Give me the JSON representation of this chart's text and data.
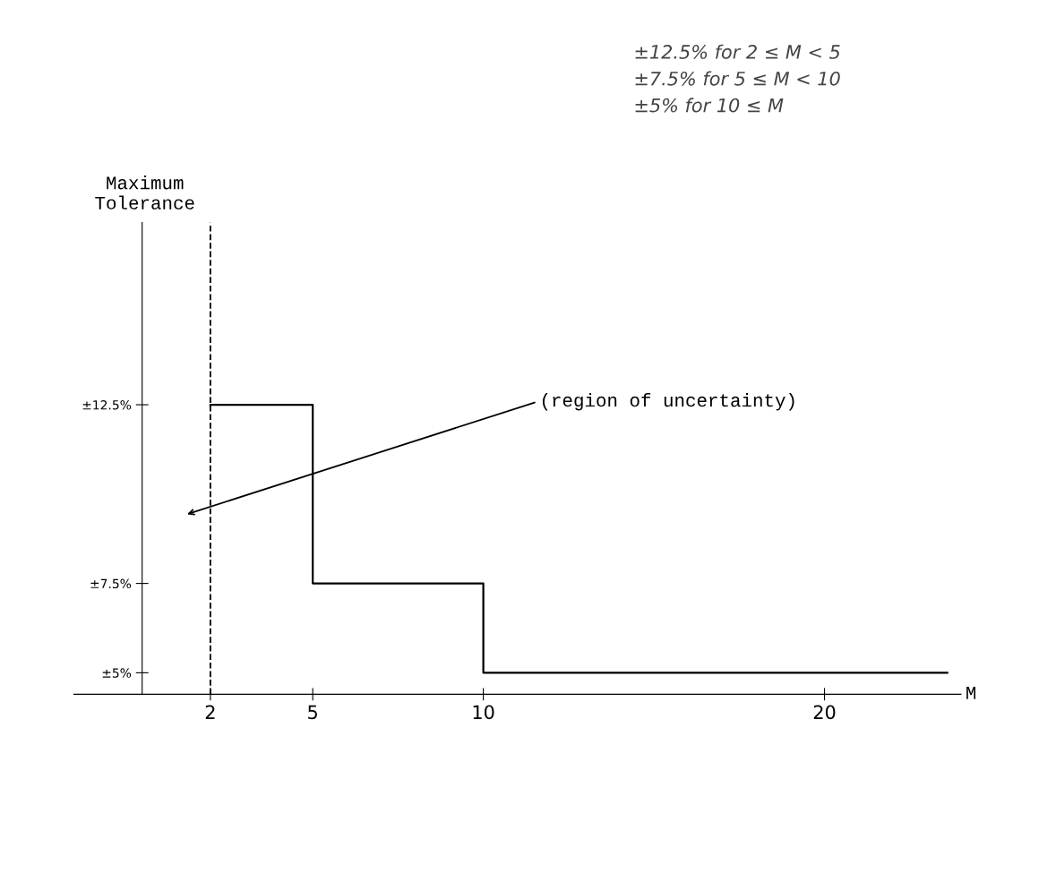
{
  "chart_data": {
    "type": "step",
    "xlabel": "M",
    "ylabel": "Maximum\nTolerance",
    "x": [
      2,
      5,
      10,
      23.6
    ],
    "series": [
      {
        "color": "#000000",
        "values": [
          12.5,
          7.5,
          5,
          5
        ]
      }
    ],
    "xlim": [
      -2,
      24
    ],
    "ylim": [
      4.4,
      17.6
    ],
    "xticks": [
      2,
      5,
      10,
      20
    ],
    "yticks": [
      {
        "value": 12.5,
        "label": "±12.5%"
      },
      {
        "value": 7.5,
        "label": "±7.5%"
      },
      {
        "value": 5,
        "label": "±5%"
      }
    ],
    "ref_lines": [
      {
        "axis": "x",
        "value": 2,
        "line_style": "dashed",
        "color": "#000000"
      }
    ],
    "annotations": [
      "(region of uncertainty)",
      "±12.5% for 2 ≤ M < 5",
      "±7.5% for 5 ≤ M < 10",
      "±5% for 10 ≤ M"
    ],
    "grid": false
  }
}
